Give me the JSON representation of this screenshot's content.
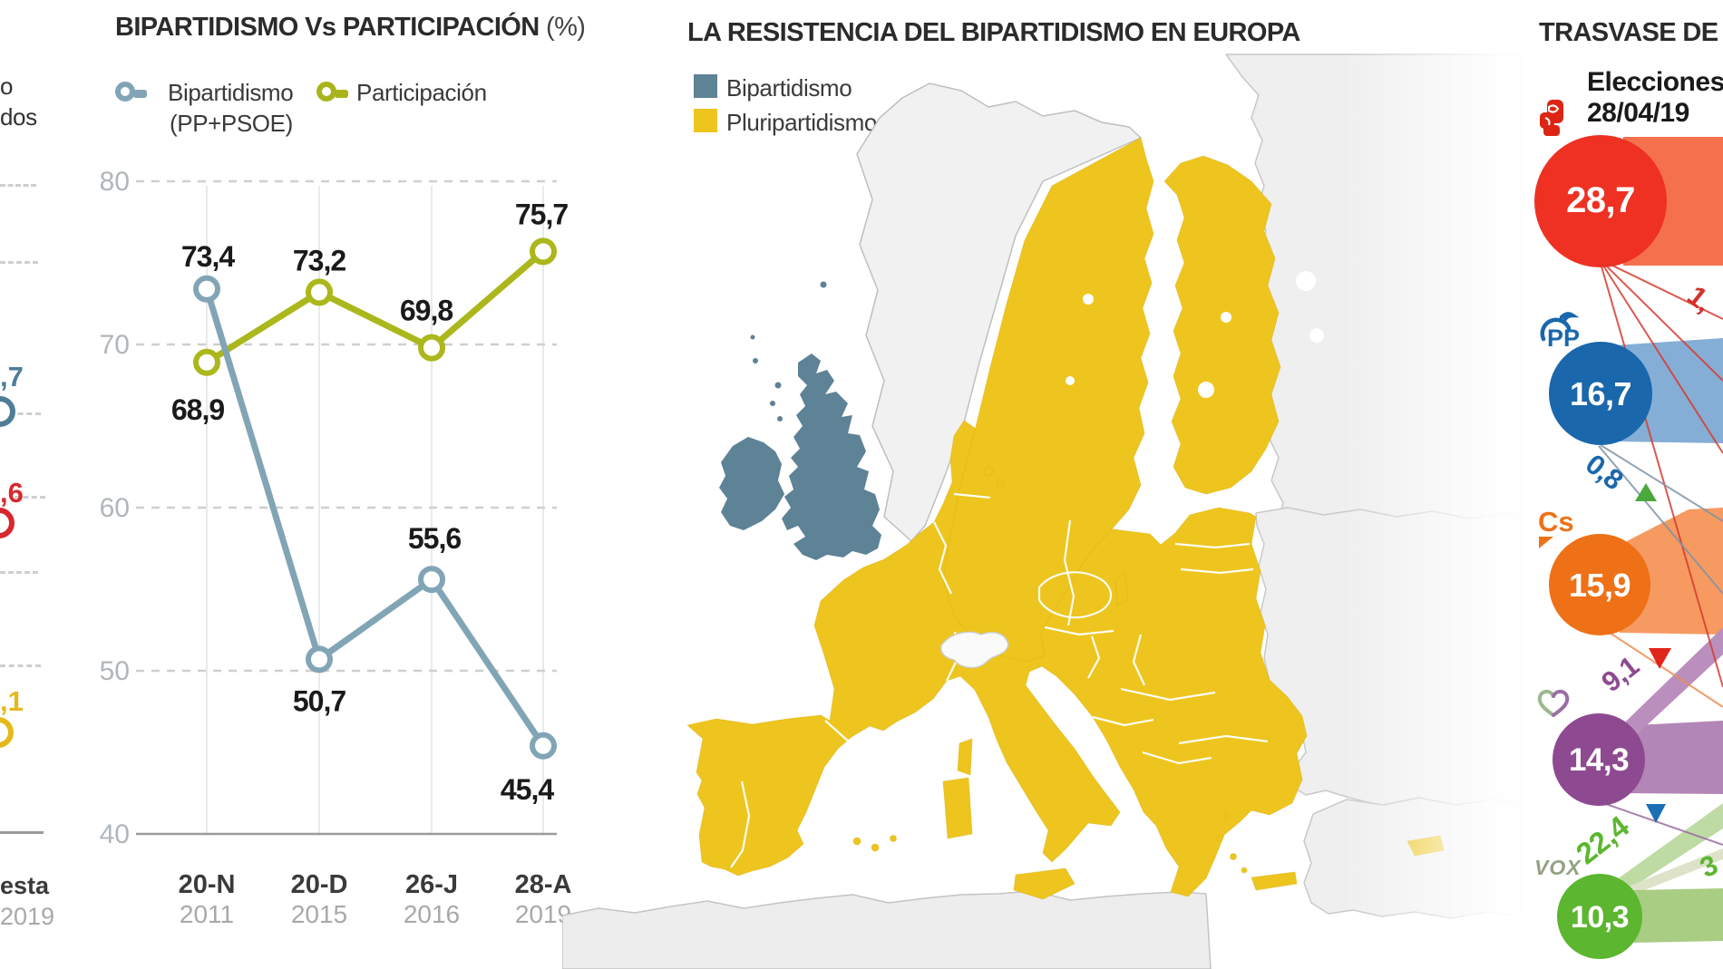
{
  "left_panel": {
    "fragment_word_1": "o",
    "fragment_word_2": "dos",
    "blue_fragment": ",7",
    "red_fragment": ",6",
    "yellow_fragment": ",1",
    "axis_word_fragment": "esta",
    "axis_year_fragment": "2019",
    "colors": {
      "blue": "#4E7D97",
      "red": "#D7282F",
      "yellow": "#E4B91A"
    }
  },
  "chart": {
    "title": "BIPARTIDISMO Vs PARTICIPACIÓN",
    "title_suffix": " (%)",
    "legend": [
      {
        "label": "Bipartidismo",
        "sublabel": "(PP+PSOE)",
        "color": "#82A5B6"
      },
      {
        "label": "Participación",
        "sublabel": "",
        "color": "#A9B41C"
      }
    ]
  },
  "chart_data": {
    "type": "line",
    "categories": [
      "20-N",
      "20-D",
      "26-J",
      "28-A"
    ],
    "category_years": [
      "2011",
      "2015",
      "2016",
      "2019"
    ],
    "series": [
      {
        "name": "Bipartidismo (PP+PSOE)",
        "values": [
          73.4,
          50.7,
          55.6,
          45.4
        ],
        "color": "#82A5B6"
      },
      {
        "name": "Participación",
        "values": [
          68.9,
          73.2,
          69.8,
          75.7
        ],
        "color": "#ABB71B"
      }
    ],
    "ylim": [
      40,
      80
    ],
    "yticks": [
      80,
      70,
      60,
      50,
      40
    ],
    "grid": "dashed-horizontal, light vertical per category",
    "legend_position": "top-left",
    "value_labels_shown": true
  },
  "map": {
    "title": "LA RESISTENCIA DEL BIPARTIDISMO EN EUROPA",
    "legend": [
      {
        "label": "Bipartidismo",
        "color": "#5E8296"
      },
      {
        "label": "Pluripartidismo",
        "color": "#EDC51E"
      }
    ]
  },
  "trasvase": {
    "title": "TRASVASE DE V",
    "subtitle_line1": "Elecciones",
    "subtitle_line2": "28/04/19",
    "parties": [
      {
        "id": "psoe",
        "value": "28,7",
        "color": "#EE3123",
        "band_color": "#F5714D"
      },
      {
        "id": "pp",
        "value": "16,7",
        "color": "#1A67AC",
        "band_color": "#7BA7D2",
        "logo_text": "PP"
      },
      {
        "id": "cs",
        "value": "15,9",
        "color": "#EE7118",
        "band_color": "#F79A61",
        "logo_text": "Cs"
      },
      {
        "id": "up",
        "value": "14,3",
        "color": "#8E4A90",
        "band_color": "#B286B6"
      },
      {
        "id": "vox",
        "value": "10,3",
        "color": "#5CB630",
        "band_color": "#A9CD83",
        "logo_text": "VOX"
      }
    ],
    "transfers": [
      {
        "label": "1,",
        "color": "#D6302B",
        "indicator": "none"
      },
      {
        "label": "0,8",
        "color": "#1A67AC",
        "indicator": "green-up-triangle"
      },
      {
        "label": "9,1",
        "color": "#8E4A90",
        "indicator": "red-down-triangle"
      },
      {
        "label": "22,4",
        "color": "#5CB630",
        "indicator": "blue-down-triangle"
      },
      {
        "label": "3",
        "color": "#5CB630",
        "indicator": "none"
      }
    ]
  }
}
